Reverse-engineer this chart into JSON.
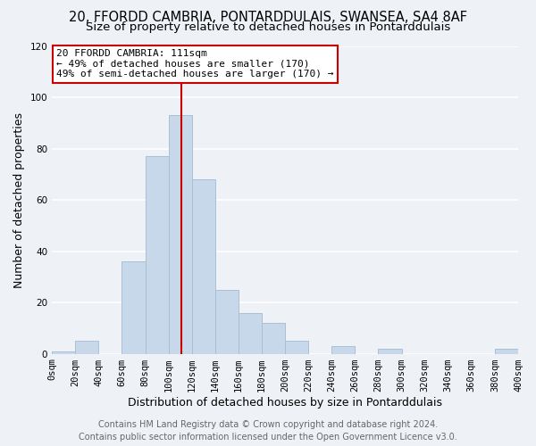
{
  "title": "20, FFORDD CAMBRIA, PONTARDDULAIS, SWANSEA, SA4 8AF",
  "subtitle": "Size of property relative to detached houses in Pontarddulais",
  "xlabel": "Distribution of detached houses by size in Pontarddulais",
  "ylabel": "Number of detached properties",
  "bar_color": "#c8d8eb",
  "bar_edgecolor": "#aabfd4",
  "bin_edges": [
    0,
    20,
    40,
    60,
    80,
    100,
    120,
    140,
    160,
    180,
    200,
    220,
    240,
    260,
    280,
    300,
    320,
    340,
    360,
    380,
    400
  ],
  "counts": [
    1,
    5,
    0,
    36,
    77,
    93,
    68,
    25,
    16,
    12,
    5,
    0,
    3,
    0,
    2,
    0,
    0,
    0,
    0,
    2
  ],
  "property_size": 111,
  "vline_color": "#cc0000",
  "annotation_title": "20 FFORDD CAMBRIA: 111sqm",
  "annotation_line1": "← 49% of detached houses are smaller (170)",
  "annotation_line2": "49% of semi-detached houses are larger (170) →",
  "annotation_box_facecolor": "#ffffff",
  "annotation_border_color": "#cc0000",
  "ylim": [
    0,
    120
  ],
  "yticks": [
    0,
    20,
    40,
    60,
    80,
    100,
    120
  ],
  "xtick_labels": [
    "0sqm",
    "20sqm",
    "40sqm",
    "60sqm",
    "80sqm",
    "100sqm",
    "120sqm",
    "140sqm",
    "160sqm",
    "180sqm",
    "200sqm",
    "220sqm",
    "240sqm",
    "260sqm",
    "280sqm",
    "300sqm",
    "320sqm",
    "340sqm",
    "360sqm",
    "380sqm",
    "400sqm"
  ],
  "footer_line1": "Contains HM Land Registry data © Crown copyright and database right 2024.",
  "footer_line2": "Contains public sector information licensed under the Open Government Licence v3.0.",
  "background_color": "#eef2f7",
  "plot_bg_color": "#eef2f7",
  "grid_color": "#ffffff",
  "title_fontsize": 10.5,
  "subtitle_fontsize": 9.5,
  "axis_label_fontsize": 9,
  "tick_fontsize": 7.5,
  "annotation_fontsize": 8,
  "footer_fontsize": 7
}
